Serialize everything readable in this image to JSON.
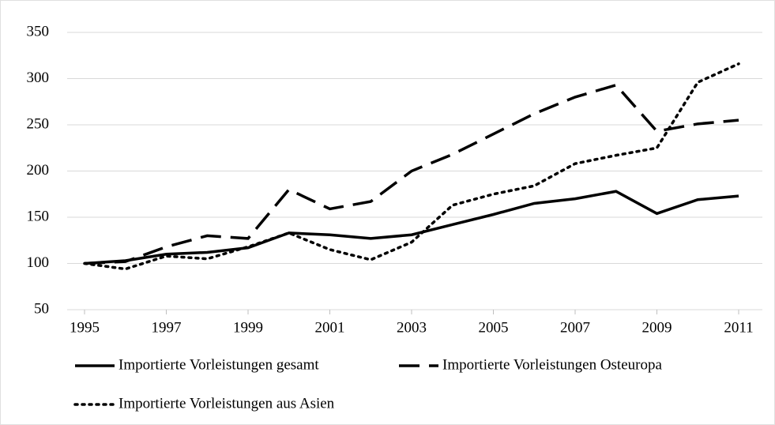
{
  "chart_data": {
    "type": "line",
    "x": [
      1995,
      1996,
      1997,
      1998,
      1999,
      2000,
      2001,
      2002,
      2003,
      2004,
      2005,
      2006,
      2007,
      2008,
      2009,
      2010,
      2011
    ],
    "xlim": [
      1995,
      2011
    ],
    "xticks": [
      1995,
      1997,
      1999,
      2001,
      2003,
      2005,
      2007,
      2009,
      2011
    ],
    "ylim": [
      50,
      350
    ],
    "yticks": [
      50,
      100,
      150,
      200,
      250,
      300,
      350
    ],
    "grid": true,
    "legend": "bottom",
    "series": [
      {
        "name": "Importierte Vorleistungen gesamt",
        "color": "#000000",
        "dash": "solid",
        "values": [
          100,
          103,
          110,
          112,
          117,
          133,
          131,
          127,
          131,
          142,
          153,
          165,
          170,
          178,
          154,
          169,
          173
        ]
      },
      {
        "name": "Importierte Vorleistungen Osteuropa",
        "color": "#000000",
        "dash": "dashed",
        "values": [
          100,
          102,
          118,
          130,
          127,
          180,
          159,
          167,
          200,
          218,
          240,
          262,
          280,
          293,
          243,
          251,
          255
        ]
      },
      {
        "name": "Importierte Vorleistungen aus Asien",
        "color": "#000000",
        "dash": "dotted",
        "values": [
          100,
          94,
          108,
          105,
          118,
          133,
          115,
          104,
          123,
          163,
          175,
          184,
          208,
          217,
          225,
          296,
          316
        ]
      }
    ]
  }
}
